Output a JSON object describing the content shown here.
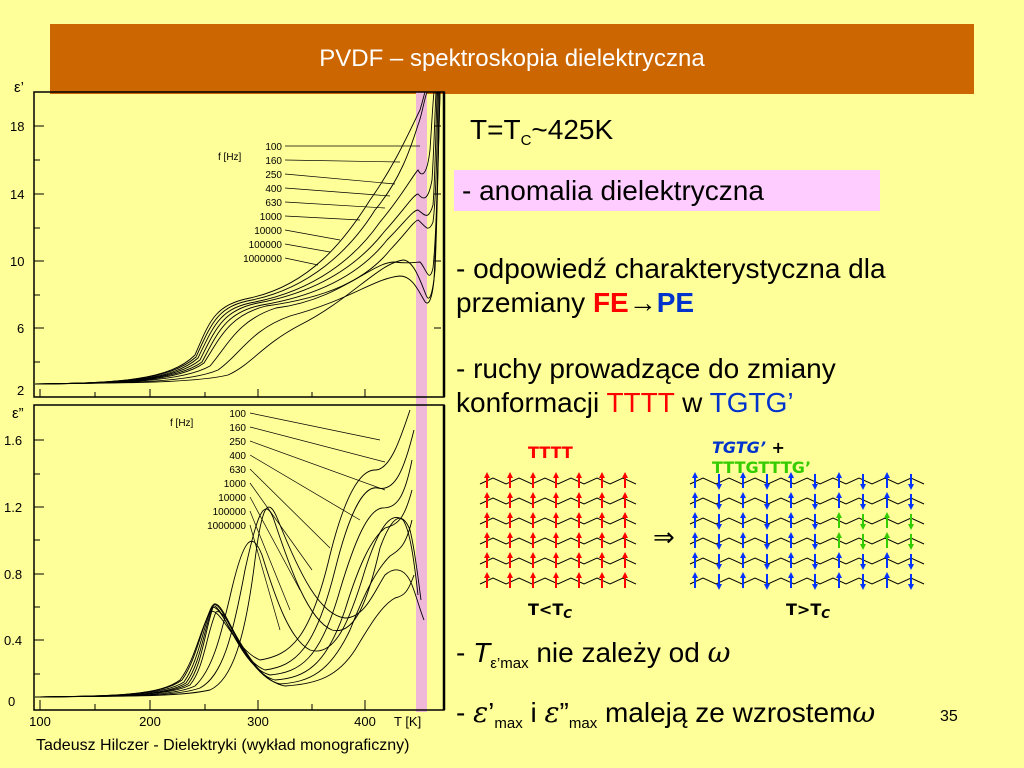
{
  "title": "PVDF – spektroskopia dielektryczna",
  "charts": {
    "top": {
      "ylabel": "ε’",
      "yticks": [
        "18",
        "14",
        "10",
        "6",
        "2"
      ],
      "legend_title": "f [Hz]",
      "legend": [
        "100",
        "160",
        "250",
        "400",
        "630",
        "1000",
        "10000",
        "100000",
        "1000000"
      ]
    },
    "bottom": {
      "ylabel": "ε”",
      "yticks": [
        "1.6",
        "1.2",
        "0.8",
        "0.4",
        "0"
      ],
      "legend_title": "f [Hz]",
      "legend": [
        "100",
        "160",
        "250",
        "400",
        "630",
        "1000",
        "10000",
        "100000",
        "1000000"
      ],
      "xticks": [
        "100",
        "200",
        "300",
        "400"
      ],
      "xlabel": "T [K]"
    }
  },
  "tc_line": {
    "main": "T=T",
    "sub": "C",
    "rest": "~425K"
  },
  "anomaly": "- anomalia dielektryczna",
  "response": {
    "line1": "- odpowiedź charakterystyczna dla",
    "line2_a": "przemiany ",
    "fe": "FE",
    "arrow": "→",
    "pe": "PE"
  },
  "moves": {
    "line1": "- ruchy prowadzące do zmiany",
    "line2_a": "konformacji ",
    "tttt": "TTTT",
    "w": " w ",
    "tgtg": "TGTG’"
  },
  "diagram": {
    "left_label": "TTTT",
    "right_label_a": "TGTG’",
    "right_label_plus": " +",
    "right_label_b": "TTTGTTTG’",
    "arrow": "⇒",
    "below_left": "T<T",
    "below_left_sub": "C",
    "below_right": "T>T",
    "below_right_sub": "C"
  },
  "tmax": {
    "dash": "- ",
    "t": "T",
    "sub": "ε’max",
    "rest": " nie zależy od  ",
    "omega": "ω"
  },
  "emax": {
    "dash": "- ",
    "e1": "ε",
    "p1": "’",
    "sub1": "max",
    "i": " i ",
    "e2": "ε",
    "p2": "”",
    "sub2": "max",
    "rest": " maleją ze wzrostem",
    "omega": "ω"
  },
  "footer": "Tadeusz Hilczer - Dielektryki (wykład monograficzny)",
  "slide_number": "35"
}
